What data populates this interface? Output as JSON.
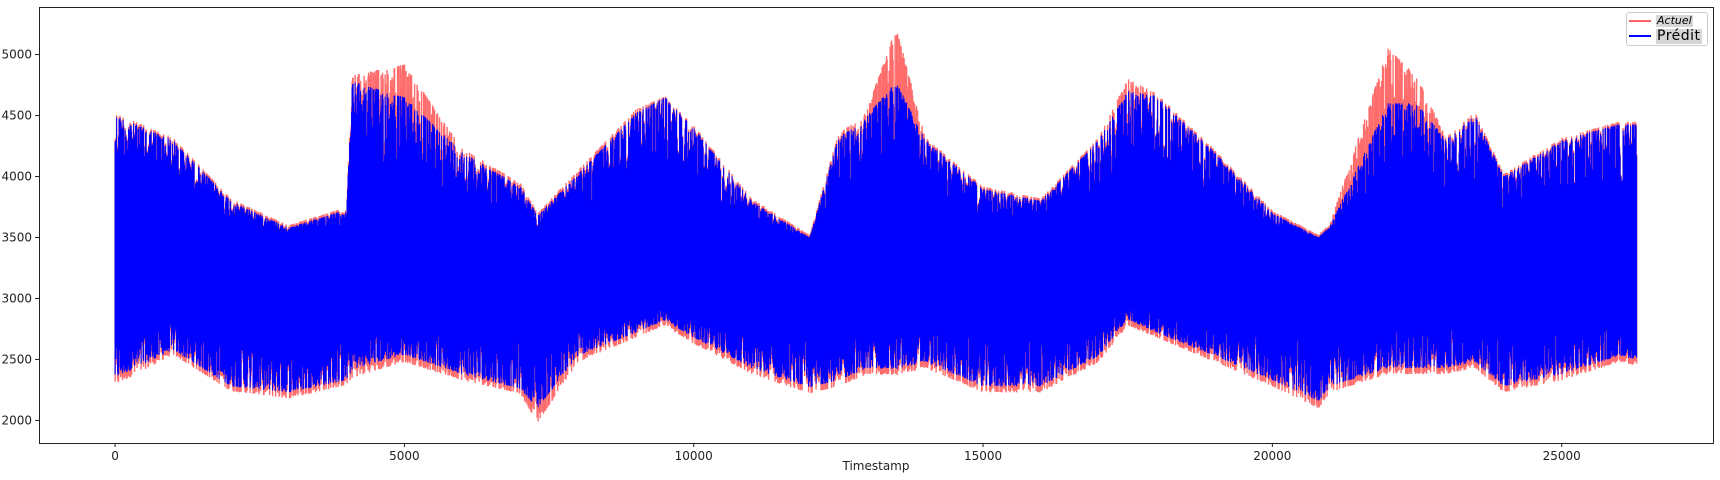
{
  "chart_data": {
    "type": "line",
    "title": "",
    "xlabel": "Timestamp",
    "ylabel": "",
    "xlim": [
      -1315,
      27615
    ],
    "ylim": [
      1815,
      5390
    ],
    "xticks": [
      0,
      5000,
      10000,
      15000,
      20000,
      25000
    ],
    "yticks": [
      2000,
      2500,
      3000,
      3500,
      4000,
      4500,
      5000
    ],
    "grid": false,
    "legend_position": "top-right",
    "envelope_note_x": [
      0,
      1000,
      2000,
      3000,
      4000,
      4100,
      5000,
      6000,
      7000,
      7300,
      8000,
      9000,
      9500,
      10000,
      11000,
      12000,
      12500,
      13000,
      13500,
      14000,
      15000,
      16000,
      17000,
      17500,
      18000,
      19000,
      20000,
      20800,
      21000,
      22000,
      22500,
      23000,
      23500,
      24000,
      25000,
      26000,
      26300
    ],
    "series": [
      {
        "name": "Actuel",
        "color": "#ff6464",
        "max": [
          4520,
          4320,
          3820,
          3600,
          3750,
          4830,
          4920,
          4230,
          3950,
          3700,
          4050,
          4550,
          4660,
          4420,
          3820,
          3520,
          4350,
          4550,
          5230,
          4320,
          3920,
          3820,
          4320,
          4800,
          4680,
          4220,
          3720,
          3520,
          3620,
          5050,
          4820,
          4320,
          4530,
          4020,
          4320,
          4450,
          4450
        ],
        "min": [
          2290,
          2540,
          2240,
          2180,
          2290,
          2350,
          2480,
          2330,
          2220,
          1980,
          2480,
          2680,
          2780,
          2630,
          2380,
          2220,
          2280,
          2380,
          2370,
          2430,
          2230,
          2230,
          2480,
          2780,
          2680,
          2480,
          2280,
          2100,
          2230,
          2380,
          2380,
          2380,
          2430,
          2230,
          2330,
          2480,
          2450
        ]
      },
      {
        "name": "Prédit",
        "color": "#0000ff",
        "max": [
          4500,
          4300,
          3800,
          3580,
          3730,
          4780,
          4650,
          4200,
          3920,
          3680,
          4020,
          4520,
          4650,
          4400,
          3800,
          3500,
          4320,
          4500,
          4780,
          4300,
          3900,
          3800,
          4300,
          4700,
          4660,
          4200,
          3700,
          3500,
          3600,
          4600,
          4600,
          4300,
          4500,
          4000,
          4300,
          4430,
          4430
        ],
        "min": [
          2350,
          2580,
          2280,
          2230,
          2330,
          2420,
          2540,
          2380,
          2260,
          2100,
          2530,
          2720,
          2820,
          2680,
          2430,
          2270,
          2330,
          2430,
          2420,
          2480,
          2280,
          2280,
          2530,
          2830,
          2720,
          2530,
          2330,
          2160,
          2280,
          2430,
          2430,
          2430,
          2480,
          2280,
          2380,
          2530,
          2500
        ]
      }
    ]
  }
}
